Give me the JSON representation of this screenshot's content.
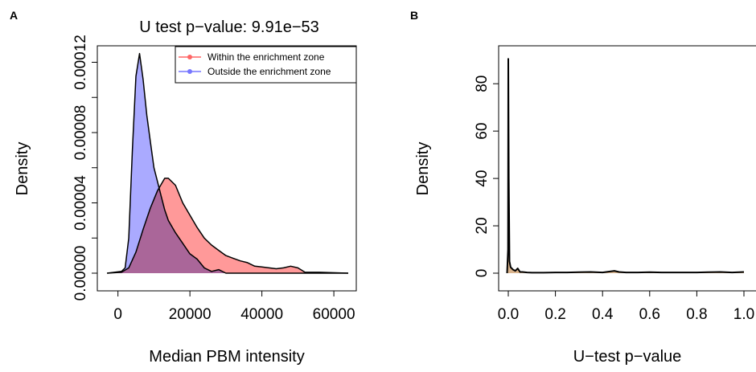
{
  "chart_data": [
    {
      "panel_label": "A",
      "type": "area",
      "title": "U test p−value: 9.91e−53",
      "xlabel": "Median PBM intensity",
      "ylabel": "Density",
      "xlim": [
        -3500,
        64000
      ],
      "ylim": [
        0,
        0.000128
      ],
      "xticks": [
        0,
        20000,
        40000,
        60000
      ],
      "xtick_labels": [
        "0",
        "20000",
        "40000",
        "60000"
      ],
      "yticks": [
        0,
        2e-05,
        4e-05,
        6e-05,
        8e-05,
        0.0001,
        0.00012
      ],
      "ytick_labels": [
        {
          "value": 0,
          "label": "0.00000"
        },
        {
          "value": 4e-05,
          "label": "0.00004"
        },
        {
          "value": 8e-05,
          "label": "0.00008"
        },
        {
          "value": 0.00012,
          "label": "0.00012"
        }
      ],
      "grid": false,
      "legend_position": "top-right",
      "series": [
        {
          "name": "Outside the enrichment zone",
          "color": "#7777ff",
          "fill": "#aaaaff",
          "x": [
            -3000,
            1000,
            2000,
            3000,
            4000,
            5000,
            6000,
            7000,
            8000,
            9000,
            10000,
            11000,
            12000,
            13000,
            14000,
            16000,
            18000,
            20000,
            22000,
            24000,
            26000,
            28000,
            30000,
            40000,
            64000
          ],
          "y": [
            0,
            1e-06,
            3e-06,
            2e-05,
            7e-05,
            0.000112,
            0.000125,
            0.00011,
            9e-05,
            7.5e-05,
            6e-05,
            5.2e-05,
            4.4e-05,
            3.6e-05,
            3e-05,
            2.3e-05,
            1.7e-05,
            1.1e-05,
            8e-06,
            3e-06,
            1e-06,
            2e-06,
            0,
            0,
            0
          ]
        },
        {
          "name": "Within the enrichment zone",
          "color": "#ff6666",
          "fill": "#ff9999",
          "x": [
            -3000,
            1000,
            3000,
            5000,
            7000,
            9000,
            11000,
            13000,
            14000,
            16000,
            18000,
            20000,
            22000,
            24000,
            26000,
            28000,
            30000,
            32000,
            34000,
            36000,
            38000,
            40000,
            42000,
            44000,
            46000,
            48000,
            50000,
            52000,
            56000,
            64000
          ],
          "y": [
            0,
            5e-07,
            3e-06,
            1.2e-05,
            2.5e-05,
            3.7e-05,
            4.7e-05,
            5.4e-05,
            5.4e-05,
            5e-05,
            4e-05,
            3.3e-05,
            2.6e-05,
            2e-05,
            1.6e-05,
            1.3e-05,
            1e-05,
            8.5e-06,
            7e-06,
            6e-06,
            4e-06,
            3.5e-06,
            3e-06,
            2.5e-06,
            3e-06,
            4e-06,
            3e-06,
            5e-07,
            5e-07,
            0
          ]
        }
      ]
    },
    {
      "panel_label": "B",
      "type": "area",
      "title": "",
      "xlabel": "U−test p−value",
      "ylabel": "Density",
      "xlim": [
        0,
        1
      ],
      "ylim": [
        0,
        95
      ],
      "xticks": [
        0,
        0.2,
        0.4,
        0.6,
        0.8,
        1.0
      ],
      "xtick_labels": [
        "0.0",
        "0.2",
        "0.4",
        "0.6",
        "0.8",
        "1.0"
      ],
      "yticks": [
        0,
        20,
        40,
        60,
        80
      ],
      "ytick_labels": [
        "0",
        "20",
        "40",
        "60",
        "80"
      ],
      "grid": false,
      "series": [
        {
          "name": "",
          "color": "#000000",
          "fill": "#d9b38c",
          "x": [
            -0.005,
            -0.001,
            0.0,
            0.002,
            0.005,
            0.01,
            0.02,
            0.03,
            0.04,
            0.05,
            0.06,
            0.08,
            0.1,
            0.15,
            0.2,
            0.25,
            0.3,
            0.35,
            0.4,
            0.45,
            0.47,
            0.5,
            0.55,
            0.6,
            0.65,
            0.7,
            0.75,
            0.8,
            0.85,
            0.9,
            0.95,
            1.0
          ],
          "y": [
            0,
            10,
            90.5,
            40,
            5,
            2.5,
            1.5,
            1.0,
            2.0,
            0.5,
            0.5,
            0.3,
            0.2,
            0.2,
            0.3,
            0.3,
            0.4,
            0.5,
            0.3,
            1.0,
            0.5,
            0.3,
            0.3,
            0.4,
            0.3,
            0.3,
            0.3,
            0.3,
            0.4,
            0.5,
            0.3,
            0.5
          ]
        }
      ]
    }
  ],
  "legend": {
    "within_label": "Within the enrichment zone",
    "outside_label": "Outside the enrichment zone"
  }
}
